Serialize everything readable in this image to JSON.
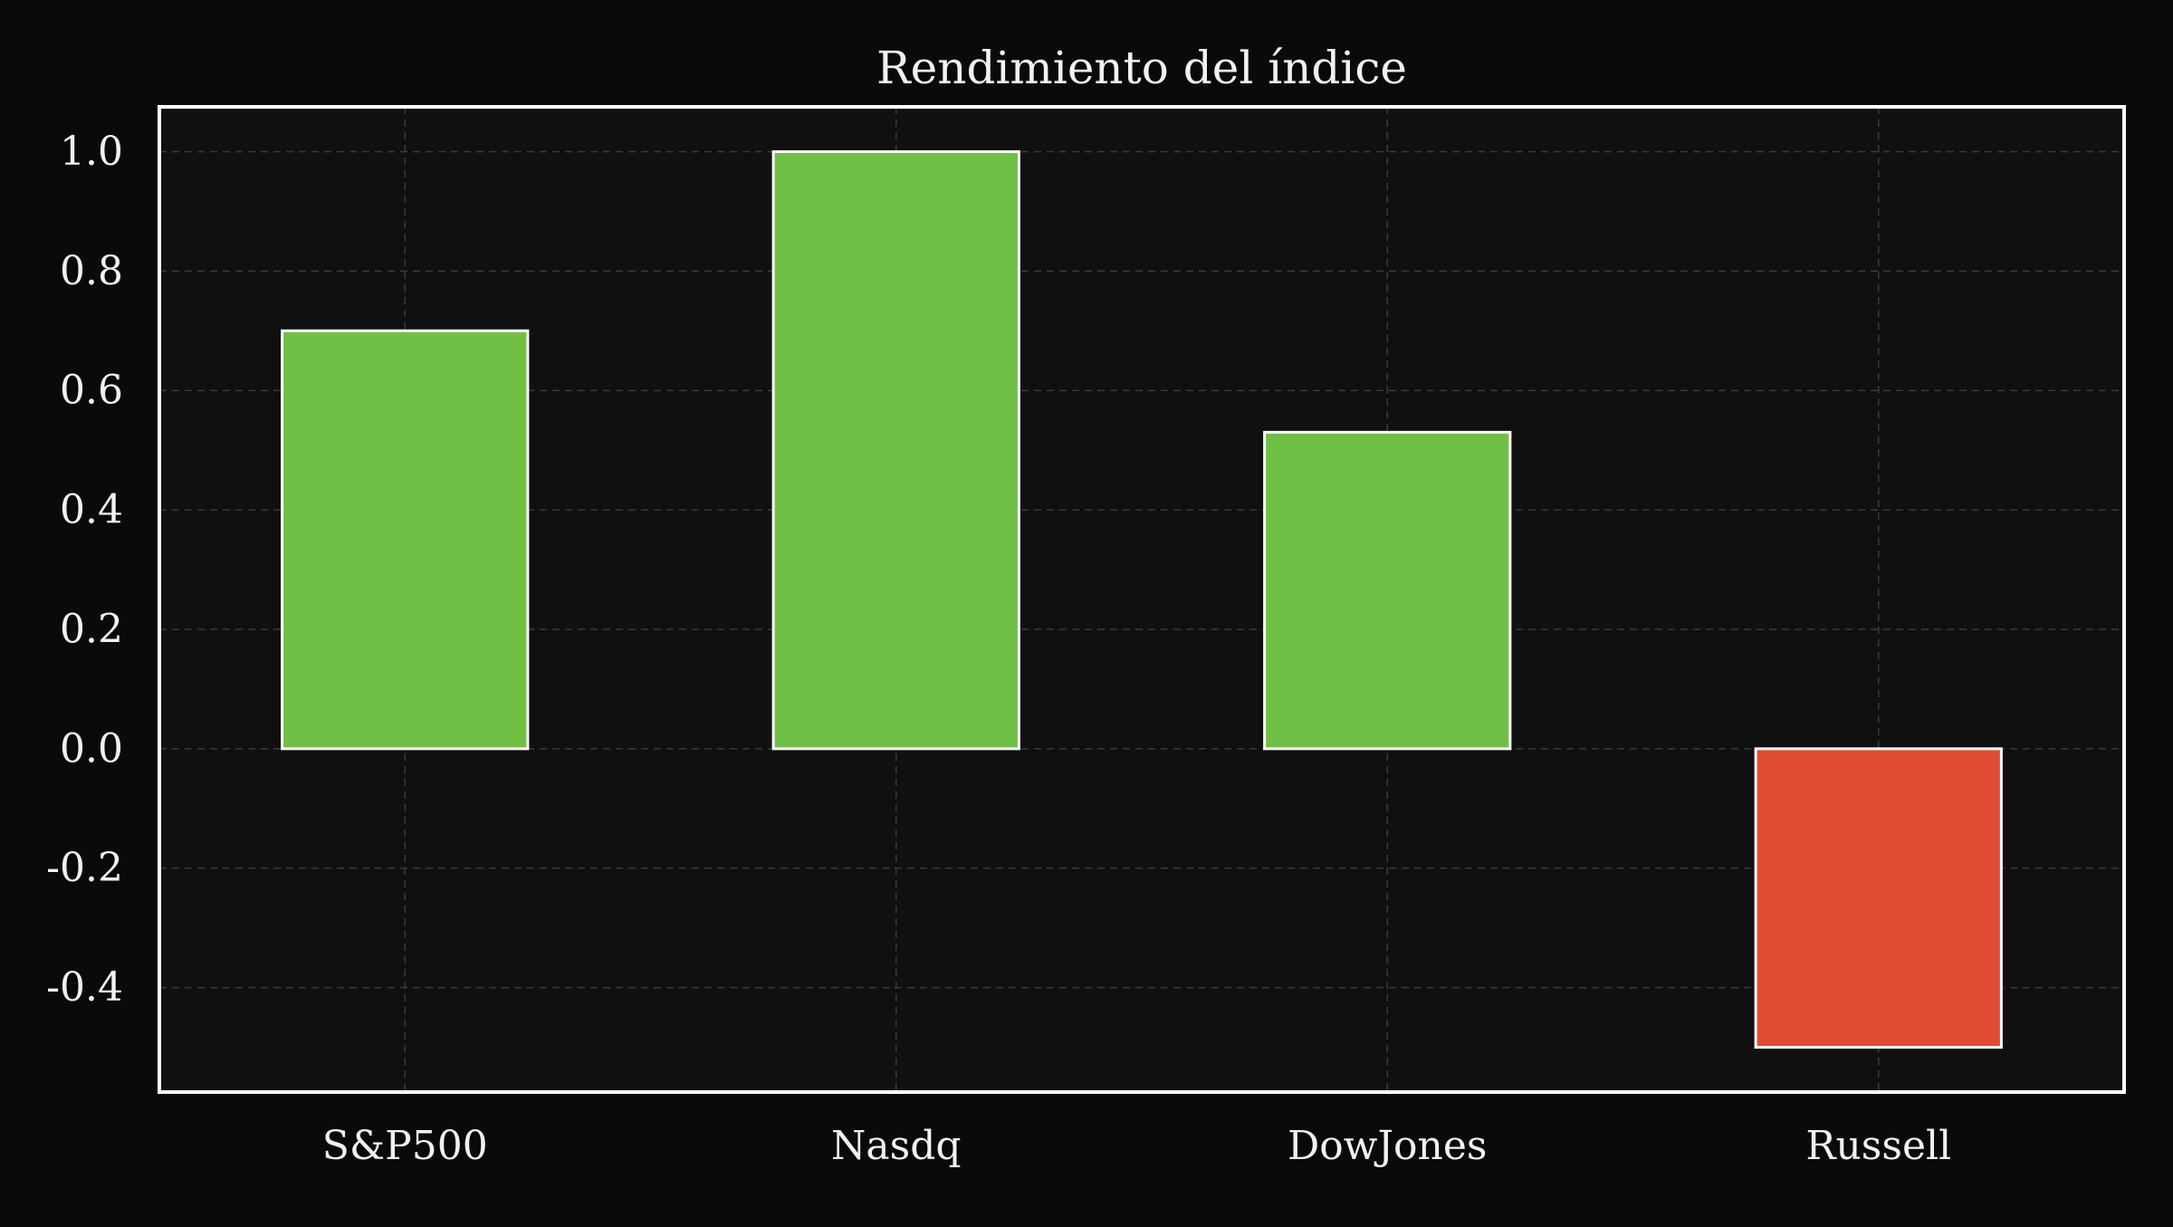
{
  "chart_data": {
    "type": "bar",
    "title": "Rendimiento del índice",
    "xlabel": "",
    "ylabel": "",
    "categories": [
      "S&P500",
      "Nasdq",
      "DowJones",
      "Russell"
    ],
    "values": [
      0.7,
      1.0,
      0.53,
      -0.5
    ],
    "ylim": [
      -0.575,
      1.075
    ],
    "yticks": [
      -0.4,
      -0.2,
      0.0,
      0.2,
      0.4,
      0.6,
      0.8,
      1.0
    ],
    "ytick_labels": [
      "-0.4",
      "-0.2",
      "0.0",
      "0.2",
      "0.4",
      "0.6",
      "0.8",
      "1.0"
    ],
    "grid": true,
    "legend": "none",
    "colors": {
      "positive": "#70bf45",
      "negative": "#e24b33",
      "bar_edge": "#ffffff",
      "plot_background": "#101010",
      "page_background": "#0a0a0a",
      "grid": "#3a3a3a",
      "frame": "#ffffff",
      "text": "#f2f2f2"
    }
  }
}
